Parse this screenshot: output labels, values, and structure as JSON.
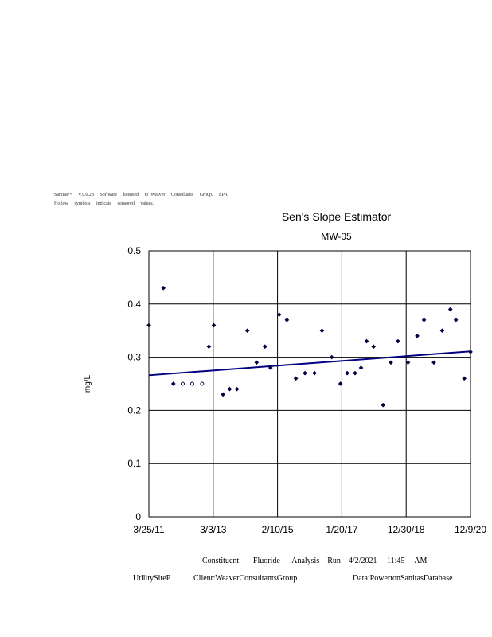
{
  "header": {
    "line1": "Sanitas™     v.9.6.28     Software     licensed     to  Weaver     Consultants     Group.     EPA",
    "line2": "Hollow     symbols     indicate     censored     values."
  },
  "footer": {
    "constituent": "Constituent:      Fluoride      Analysis    Run    4/2/2021     11:45     AM",
    "site": "UtilitySiteP",
    "client": "Client:WeaverConsultantsGroup",
    "data": "Data:PowertonSanitasDatabase"
  },
  "chart_data": {
    "type": "scatter",
    "title": "Sen's Slope Estimator",
    "subtitle": "MW-05",
    "ylabel": "mg/L",
    "xlabel": "",
    "xlim": [
      "2011-03-25",
      "2020-12-09"
    ],
    "ylim": [
      0,
      0.5
    ],
    "grid": true,
    "x_ticks": [
      "3/25/11",
      "3/3/13",
      "2/10/15",
      "1/20/17",
      "12/30/18",
      "12/9/20"
    ],
    "y_ticks": [
      "0",
      "0.1",
      "0.2",
      "0.3",
      "0.4",
      "0.5"
    ],
    "colors": {
      "points": "#000040",
      "trend": "#000080",
      "grid": "#000000"
    },
    "series": [
      {
        "type": "scatter",
        "points": [
          {
            "x": "2011-03-25",
            "y": 0.36,
            "censored": false
          },
          {
            "x": "2011-09-01",
            "y": 0.43,
            "censored": false
          },
          {
            "x": "2011-12-20",
            "y": 0.25,
            "censored": false
          },
          {
            "x": "2012-04-01",
            "y": 0.25,
            "censored": true
          },
          {
            "x": "2012-07-15",
            "y": 0.25,
            "censored": true
          },
          {
            "x": "2012-11-01",
            "y": 0.25,
            "censored": true
          },
          {
            "x": "2013-01-15",
            "y": 0.32,
            "censored": false
          },
          {
            "x": "2013-03-10",
            "y": 0.36,
            "censored": false
          },
          {
            "x": "2013-06-20",
            "y": 0.23,
            "censored": false
          },
          {
            "x": "2013-09-01",
            "y": 0.24,
            "censored": false
          },
          {
            "x": "2013-11-20",
            "y": 0.24,
            "censored": false
          },
          {
            "x": "2014-03-15",
            "y": 0.35,
            "censored": false
          },
          {
            "x": "2014-06-25",
            "y": 0.29,
            "censored": false
          },
          {
            "x": "2014-09-25",
            "y": 0.32,
            "censored": false
          },
          {
            "x": "2014-11-25",
            "y": 0.28,
            "censored": false
          },
          {
            "x": "2015-03-01",
            "y": 0.38,
            "censored": false
          },
          {
            "x": "2015-05-25",
            "y": 0.37,
            "censored": false
          },
          {
            "x": "2015-09-01",
            "y": 0.26,
            "censored": false
          },
          {
            "x": "2015-12-10",
            "y": 0.27,
            "censored": false
          },
          {
            "x": "2016-03-25",
            "y": 0.27,
            "censored": false
          },
          {
            "x": "2016-06-15",
            "y": 0.35,
            "censored": false
          },
          {
            "x": "2016-10-01",
            "y": 0.3,
            "censored": false
          },
          {
            "x": "2017-01-05",
            "y": 0.25,
            "censored": false
          },
          {
            "x": "2017-03-20",
            "y": 0.27,
            "censored": false
          },
          {
            "x": "2017-06-15",
            "y": 0.27,
            "censored": false
          },
          {
            "x": "2017-08-20",
            "y": 0.28,
            "censored": false
          },
          {
            "x": "2017-10-20",
            "y": 0.33,
            "censored": false
          },
          {
            "x": "2018-01-05",
            "y": 0.32,
            "censored": false
          },
          {
            "x": "2018-04-20",
            "y": 0.21,
            "censored": false
          },
          {
            "x": "2018-07-15",
            "y": 0.29,
            "censored": false
          },
          {
            "x": "2018-10-01",
            "y": 0.33,
            "censored": false
          },
          {
            "x": "2019-01-20",
            "y": 0.29,
            "censored": false
          },
          {
            "x": "2019-05-01",
            "y": 0.34,
            "censored": false
          },
          {
            "x": "2019-07-15",
            "y": 0.37,
            "censored": false
          },
          {
            "x": "2019-11-01",
            "y": 0.29,
            "censored": false
          },
          {
            "x": "2020-02-01",
            "y": 0.35,
            "censored": false
          },
          {
            "x": "2020-05-01",
            "y": 0.39,
            "censored": false
          },
          {
            "x": "2020-07-01",
            "y": 0.37,
            "censored": false
          },
          {
            "x": "2020-10-01",
            "y": 0.26,
            "censored": false
          },
          {
            "x": "2020-12-09",
            "y": 0.31,
            "censored": false
          }
        ]
      },
      {
        "type": "line",
        "points": [
          {
            "x": "2011-03-25",
            "y": 0.266
          },
          {
            "x": "2020-12-09",
            "y": 0.311
          }
        ]
      }
    ]
  }
}
